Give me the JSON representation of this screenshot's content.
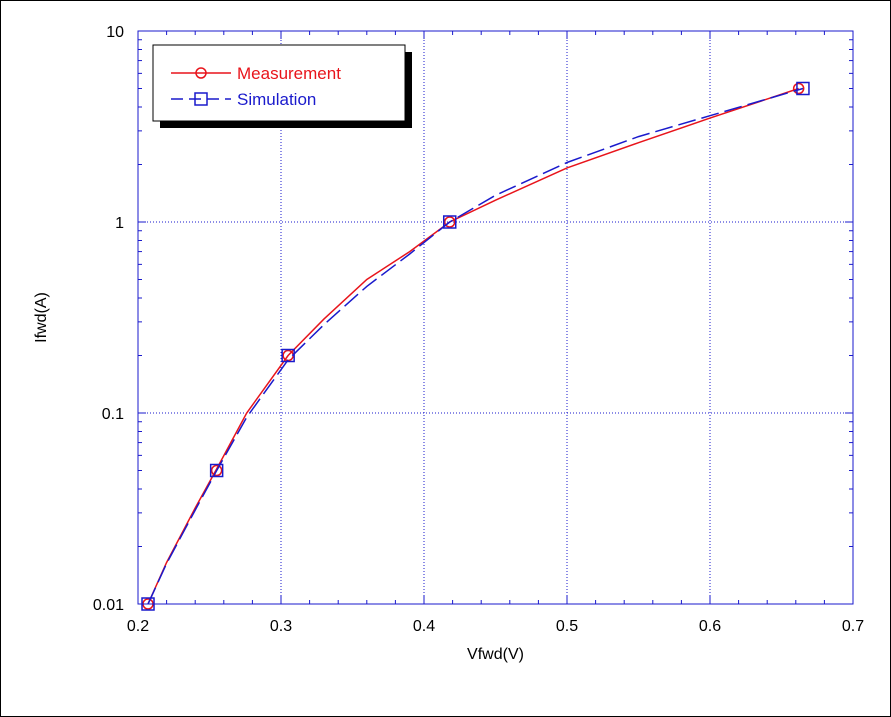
{
  "chart_data": {
    "type": "line",
    "title": "",
    "xlabel": "Vfwd(V)",
    "ylabel": "Ifwd(A)",
    "xscale": "linear",
    "yscale": "log",
    "xlim": [
      0.2,
      0.7
    ],
    "ylim": [
      0.01,
      10
    ],
    "xticks": [
      "0.2",
      "0.3",
      "0.4",
      "0.5",
      "0.6",
      "0.7"
    ],
    "yticks": [
      "0.01",
      "0.1",
      "1",
      "10"
    ],
    "grid": true,
    "legend_position": "top-left",
    "series": [
      {
        "name": "Measurement",
        "color": "#e8141b",
        "line_style": "solid",
        "marker": "circle",
        "x": [
          0.207,
          0.22,
          0.24,
          0.255,
          0.276,
          0.305,
          0.33,
          0.36,
          0.39,
          0.418,
          0.45,
          0.5,
          0.55,
          0.6,
          0.662
        ],
        "y": [
          0.01,
          0.0165,
          0.0318,
          0.051,
          0.1,
          0.2,
          0.31,
          0.5,
          0.7,
          1.0,
          1.3,
          1.92,
          2.6,
          3.5,
          5.0
        ],
        "marker_x": [
          0.207,
          0.255,
          0.305,
          0.418,
          0.662
        ],
        "marker_y": [
          0.01,
          0.05,
          0.2,
          1.0,
          5.0
        ]
      },
      {
        "name": "Simulation",
        "color": "#1a1acc",
        "line_style": "dashed",
        "marker": "square",
        "x": [
          0.207,
          0.22,
          0.24,
          0.255,
          0.276,
          0.305,
          0.33,
          0.36,
          0.39,
          0.418,
          0.45,
          0.5,
          0.55,
          0.6,
          0.665
        ],
        "y": [
          0.01,
          0.0163,
          0.031,
          0.05,
          0.095,
          0.19,
          0.29,
          0.46,
          0.68,
          1.0,
          1.38,
          2.05,
          2.8,
          3.6,
          5.0
        ],
        "marker_x": [
          0.207,
          0.255,
          0.305,
          0.418,
          0.665
        ],
        "marker_y": [
          0.01,
          0.05,
          0.2,
          1.0,
          5.0
        ]
      }
    ]
  }
}
